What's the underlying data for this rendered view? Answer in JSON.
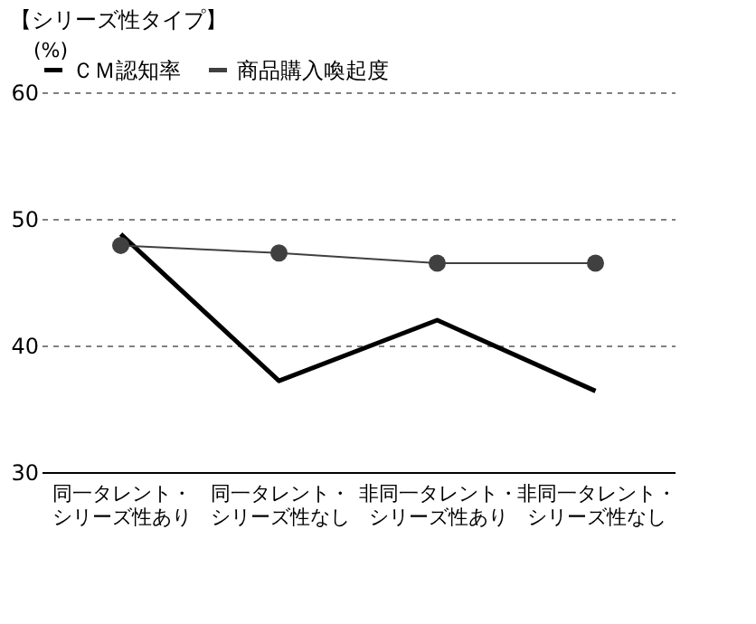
{
  "chart_data": {
    "type": "line",
    "title": "【シリーズ性タイプ】",
    "ylabel": "(%)",
    "categories": [
      "同一タレント・シリーズ性あり",
      "同一タレント・シリーズ性なし",
      "非同一タレント・シリーズ性あり",
      "非同一タレント・シリーズ性なし"
    ],
    "series": [
      {
        "name": "ＣＭ認知率",
        "color": "#000000",
        "marker": "none",
        "values": [
          48.8,
          37.2,
          42.0,
          36.4
        ]
      },
      {
        "name": "商品購入喚起度",
        "color": "#404040",
        "marker": "circle",
        "values": [
          47.9,
          47.3,
          46.5,
          46.5
        ]
      }
    ],
    "ylim": [
      30,
      60
    ],
    "yticks": [
      30,
      40,
      50,
      60
    ],
    "grid": "y",
    "legend": "top",
    "line_style": "solid"
  }
}
